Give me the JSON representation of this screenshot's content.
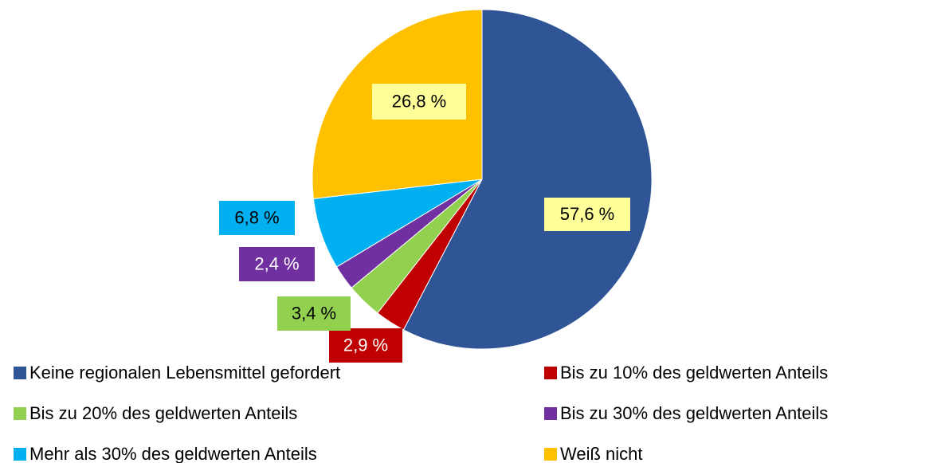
{
  "chart_data": {
    "type": "pie",
    "categories": [
      "Keine regionalen Lebensmittel gefordert",
      "Bis zu 10% des geldwerten Anteils",
      "Bis zu 20% des geldwerten Anteils",
      "Bis zu 30% des geldwerten Anteils",
      "Mehr als 30% des geldwerten Anteils",
      "Weiß nicht"
    ],
    "values": [
      57.6,
      2.9,
      3.4,
      2.4,
      6.8,
      26.8
    ],
    "value_labels": [
      "57,6 %",
      "2,9 %",
      "3,4 %",
      "2,4 %",
      "6,8 %",
      "26,8 %"
    ],
    "colors": [
      "#2f5597",
      "#c00000",
      "#92d050",
      "#7030a0",
      "#00b0f0",
      "#ffc000"
    ]
  }
}
